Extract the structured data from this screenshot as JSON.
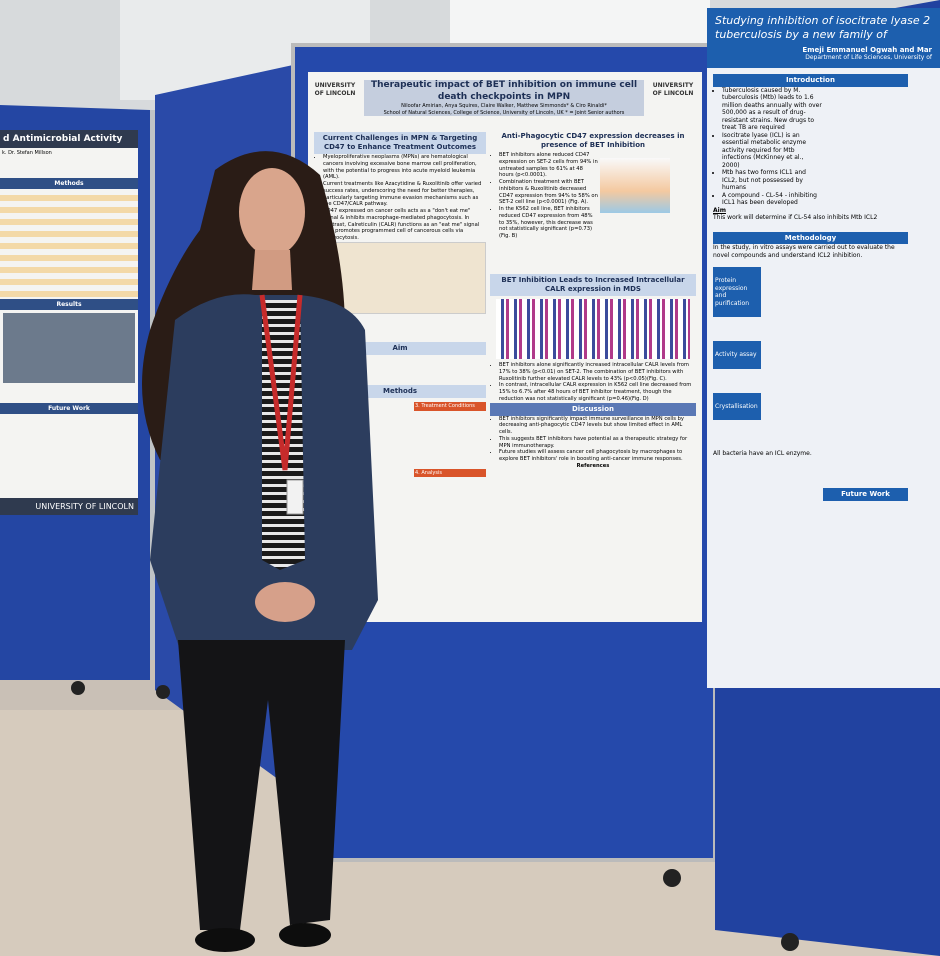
{
  "left_poster": {
    "title": "d Antimicrobial Activity",
    "author": "k. Dr. Stefan Millson",
    "sections": [
      "Methods",
      "Results",
      "Future Work"
    ],
    "logo": "UNIVERSITY OF LINCOLN"
  },
  "center_poster": {
    "title": "Therapeutic impact of BET inhibition on immune cell death checkpoints in MPN",
    "authors": "Niloofar Amirian, Anya Squires, Claire Walker, Matthew Simmonds* & Ciro Rinaldi*",
    "affiliation": "School of Natural Sciences, College of Science, University of Lincoln, UK * = Joint Senior authors",
    "logo": "UNIVERSITY OF LINCOLN",
    "challenges": {
      "heading": "Current Challenges in MPN & Targeting CD47 to Enhance Treatment Outcomes",
      "bullets": [
        "Myeloproliferative neoplasms (MPNs) are hematological cancers involving excessive bone marrow cell proliferation, with the potential to progress into acute myeloid leukemia (AML).",
        "Current treatments like Azacytidine & Ruxolitinib offer varied success rates, underscoring the need for better therapies, particularly targeting immune evasion mechanisms such as the CD47/CALR pathway.",
        "CD47 expressed on cancer cells acts as a \"don't eat me\" signal & inhibits macrophage-mediated phagocytosis. In contrast, Calreticulin (CALR) functions as an \"eat me\" signal that promotes programmed cell of cancerous cells via phagocytosis."
      ]
    },
    "aim": "Aim",
    "methods": {
      "heading": "Methods",
      "steps": [
        "3. Treatment Conditions",
        "4. Analysis"
      ]
    },
    "cd47": {
      "heading": "Anti-Phagocytic CD47 expression decreases in presence of BET Inhibition",
      "bullets": [
        "BET inhibitors alone reduced CD47 expression on SET-2 cells from 94% in untreated samples to 61% at 48 hours (p<0.0001).",
        "Combination treatment with BET inhibitors & Ruxolitinib decreased CD47 expression from 94% to 58% on SET-2 cell line (p<0.0001) (Fig. A).",
        "In the K562 cell line, BET inhibitors reduced CD47 expression from 48% to 35%, however, this decrease was not statistically significant (p=0.73) (Fig. B)"
      ]
    },
    "calr": {
      "heading": "BET Inhibition Leads to Increased Intracellular CALR expression in MDS",
      "bullets": [
        "BET inhibitors alone significantly increased intracellular CALR levels from 17% to 38% (p<0.01) on SET-2. The combination of BET inhibitors with Ruxolitinib further elevated CALR levels to 43% (p<0.05)(Fig. C).",
        "In contrast, intracellular CALR expression in K562 cell line decreased from 15% to 6.7% after 48 hours of BET inhibitor treatment, though the reduction was not statistically significant (p=0.46)(Fig. D)"
      ]
    },
    "discussion": {
      "heading": "Discussion",
      "bullets": [
        "BET inhibitors significantly impact immune surveillance in MPN cells by decreasing anti-phagocytic CD47 levels but show limited effect in AML cells.",
        "This suggests BET inhibitors have potential as a therapeutic strategy for MPN immunotherapy.",
        "Future studies will assess cancer cell phagocytosis by macrophages to explore BET inhibitors' role in boosting anti-cancer immune responses."
      ]
    },
    "references": "References"
  },
  "right_poster": {
    "title": [
      "Studying inhibition of isocitrate lyase 2",
      "tuberculosis by a new family of"
    ],
    "authors": "Emeji Emmanuel Ogwah and Mar",
    "department": "Department of Life Sciences, University of",
    "introduction": {
      "heading": "Introduction",
      "bullets": [
        "Tuberculosis caused by M. tuberculosis (Mtb) leads to 1.6 million deaths annually with over 500,000 as a result of drug-resistant strains. New drugs to treat TB are required",
        "Isocitrate lyase (ICL) is an essential metabolic enzyme activity required for Mtb infections (McKinney et al., 2000)",
        "Mtb has two forms ICL1 and ICL2, but not possessed by humans",
        "A compound - CL-54 - inhibiting ICL1 has been developed"
      ]
    },
    "aim": {
      "heading": "Aim",
      "text": "This work will determine if CL-54 also inhibits Mtb ICL2"
    },
    "methodology": {
      "heading": "Methodology",
      "text": "In the study, in vitro assays were carried out to evaluate the novel compounds and understand ICL2 inhibition.",
      "steps": [
        "Protein expression and purification",
        "Activity assay",
        "Crystallisation"
      ]
    },
    "note": "All bacteria have an ICL enzyme.",
    "future_work": "Future Work"
  }
}
